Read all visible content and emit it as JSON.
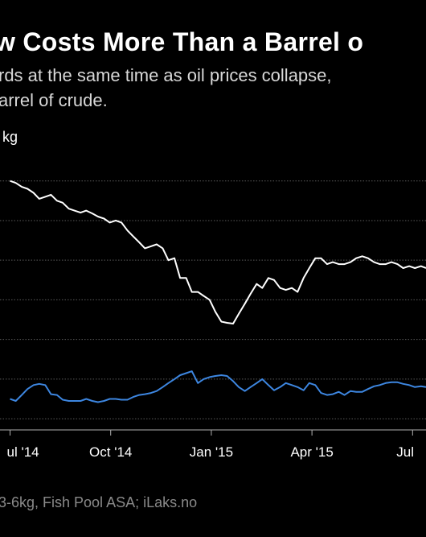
{
  "title": "w Costs More Than a Barrel o",
  "subtitle": [
    "rds at the same time as oil prices collapse,",
    "arrel of crude."
  ],
  "unit_label": "kg",
  "source": "3-6kg, Fish Pool ASA; iLaks.no",
  "colors": {
    "background": "#000000",
    "salmon_line": "#ffffff",
    "oil_line": "#3d86e0",
    "grid": "#5a5a5a"
  },
  "chart_data": {
    "type": "line",
    "x_ticks": [
      "ul '14",
      "Oct '14",
      "Jan '15",
      "Apr '15",
      "Jul"
    ],
    "x_tick_positions": [
      0,
      3,
      6,
      9,
      12
    ],
    "x_range": [
      -0.3,
      12.4
    ],
    "y_range": [
      -0.2,
      6.4
    ],
    "gridlines": [
      0,
      1,
      2,
      3,
      4,
      5,
      6
    ],
    "series": [
      {
        "x": [
          0.0,
          0.17,
          0.35,
          0.52,
          0.7,
          0.87,
          1.05,
          1.22,
          1.4,
          1.57,
          1.75,
          1.92,
          2.1,
          2.27,
          2.45,
          2.62,
          2.8,
          2.97,
          3.15,
          3.32,
          3.5,
          3.67,
          3.85,
          4.02,
          4.2,
          4.37,
          4.55,
          4.72,
          4.9,
          5.07,
          5.25,
          5.42,
          5.6,
          5.77,
          5.95,
          6.12,
          6.3,
          6.47,
          6.65,
          6.82,
          7.0,
          7.17,
          7.35,
          7.52,
          7.7,
          7.87,
          8.05,
          8.22,
          8.4,
          8.57,
          8.75,
          8.92,
          9.1,
          9.27,
          9.45,
          9.62,
          9.8,
          9.97,
          10.15,
          10.32,
          10.5,
          10.67,
          10.85,
          11.02,
          11.2,
          11.37,
          11.55,
          11.72,
          11.9,
          12.07,
          12.25,
          12.4
        ],
        "y": [
          6.0,
          5.95,
          5.85,
          5.8,
          5.7,
          5.55,
          5.6,
          5.65,
          5.5,
          5.45,
          5.3,
          5.25,
          5.2,
          5.25,
          5.18,
          5.1,
          5.05,
          4.95,
          5.0,
          4.95,
          4.75,
          4.6,
          4.45,
          4.3,
          4.35,
          4.4,
          4.3,
          4.0,
          4.05,
          3.55,
          3.55,
          3.2,
          3.2,
          3.1,
          3.0,
          2.7,
          2.45,
          2.42,
          2.4,
          2.65,
          2.9,
          3.15,
          3.4,
          3.3,
          3.55,
          3.5,
          3.3,
          3.25,
          3.3,
          3.2,
          3.55,
          3.8,
          4.05,
          4.05,
          3.9,
          3.95,
          3.9,
          3.9,
          3.95,
          4.05,
          4.1,
          4.05,
          3.95,
          3.9,
          3.9,
          3.95,
          3.9,
          3.8,
          3.85,
          3.8,
          3.85,
          3.8
        ]
      },
      {
        "x": [
          0.0,
          0.17,
          0.35,
          0.52,
          0.7,
          0.87,
          1.05,
          1.22,
          1.4,
          1.57,
          1.75,
          1.92,
          2.1,
          2.27,
          2.45,
          2.62,
          2.8,
          2.97,
          3.15,
          3.32,
          3.5,
          3.67,
          3.85,
          4.02,
          4.2,
          4.37,
          4.55,
          4.72,
          4.9,
          5.07,
          5.25,
          5.42,
          5.6,
          5.77,
          5.95,
          6.12,
          6.3,
          6.47,
          6.65,
          6.82,
          7.0,
          7.17,
          7.35,
          7.52,
          7.7,
          7.87,
          8.05,
          8.22,
          8.4,
          8.57,
          8.75,
          8.92,
          9.1,
          9.27,
          9.45,
          9.62,
          9.8,
          9.97,
          10.15,
          10.32,
          10.5,
          10.67,
          10.85,
          11.02,
          11.2,
          11.37,
          11.55,
          11.72,
          11.9,
          12.07,
          12.25,
          12.4
        ],
        "y": [
          0.5,
          0.45,
          0.6,
          0.75,
          0.85,
          0.88,
          0.85,
          0.62,
          0.6,
          0.48,
          0.45,
          0.45,
          0.45,
          0.5,
          0.45,
          0.42,
          0.45,
          0.5,
          0.5,
          0.48,
          0.48,
          0.55,
          0.6,
          0.62,
          0.65,
          0.7,
          0.8,
          0.9,
          1.0,
          1.1,
          1.15,
          1.2,
          0.9,
          1.0,
          1.05,
          1.08,
          1.1,
          1.08,
          0.95,
          0.8,
          0.7,
          0.8,
          0.9,
          1.0,
          0.85,
          0.72,
          0.8,
          0.9,
          0.85,
          0.8,
          0.72,
          0.9,
          0.85,
          0.65,
          0.6,
          0.62,
          0.68,
          0.6,
          0.7,
          0.68,
          0.68,
          0.75,
          0.82,
          0.85,
          0.9,
          0.92,
          0.92,
          0.88,
          0.85,
          0.8,
          0.82,
          0.8
        ]
      }
    ]
  }
}
